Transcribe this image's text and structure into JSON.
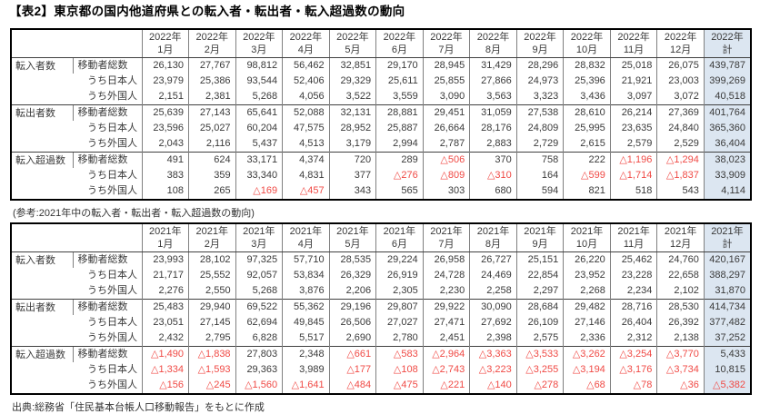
{
  "title": "【表2】東京都の国内他道府県との転入者・転出者・転入超過数の動向",
  "caption_2021": "(参考:2021年中の転入者・転出者・転入超過数の動向)",
  "source": "出典:総務省「住民基本台帳人口移動報告」をもとに作成",
  "colors": {
    "total_column_bg": "#dce6f1",
    "negative_text": "#f04a45",
    "grid_inner": "#808080",
    "grid_outer": "#000000"
  },
  "negative_prefix": "△",
  "tables": [
    {
      "year_label": "2022年",
      "columns": [
        "1月",
        "2月",
        "3月",
        "4月",
        "5月",
        "6月",
        "7月",
        "8月",
        "9月",
        "10月",
        "11月",
        "12月",
        "計"
      ],
      "groups": [
        {
          "label": "転入者数",
          "rows": [
            {
              "label": "移動者総数",
              "indent": false,
              "values": [
                "26,130",
                "27,767",
                "98,812",
                "56,462",
                "32,851",
                "29,170",
                "28,945",
                "31,429",
                "28,296",
                "28,832",
                "25,018",
                "26,075",
                "439,787"
              ]
            },
            {
              "label": "うち日本人",
              "indent": true,
              "values": [
                "23,979",
                "25,386",
                "93,544",
                "52,406",
                "29,329",
                "25,611",
                "25,855",
                "27,866",
                "24,973",
                "25,396",
                "21,921",
                "23,003",
                "399,269"
              ]
            },
            {
              "label": "うち外国人",
              "indent": true,
              "values": [
                "2,151",
                "2,381",
                "5,268",
                "4,056",
                "3,522",
                "3,559",
                "3,090",
                "3,563",
                "3,323",
                "3,436",
                "3,097",
                "3,072",
                "40,518"
              ]
            }
          ]
        },
        {
          "label": "転出者数",
          "rows": [
            {
              "label": "移動者総数",
              "indent": false,
              "values": [
                "25,639",
                "27,143",
                "65,641",
                "52,088",
                "32,131",
                "28,881",
                "29,451",
                "31,059",
                "27,538",
                "28,610",
                "26,214",
                "27,369",
                "401,764"
              ]
            },
            {
              "label": "うち日本人",
              "indent": true,
              "values": [
                "23,596",
                "25,027",
                "60,204",
                "47,575",
                "28,952",
                "25,887",
                "26,664",
                "28,176",
                "24,809",
                "25,995",
                "23,635",
                "24,840",
                "365,360"
              ]
            },
            {
              "label": "うち外国人",
              "indent": true,
              "values": [
                "2,043",
                "2,116",
                "5,437",
                "4,513",
                "3,179",
                "2,994",
                "2,787",
                "2,883",
                "2,729",
                "2,615",
                "2,579",
                "2,529",
                "36,404"
              ]
            }
          ]
        },
        {
          "label": "転入超過数",
          "rows": [
            {
              "label": "移動者総数",
              "indent": false,
              "values": [
                "491",
                "624",
                "33,171",
                "4,374",
                "720",
                "289",
                "△506",
                "370",
                "758",
                "222",
                "△1,196",
                "△1,294",
                "38,023"
              ]
            },
            {
              "label": "うち日本人",
              "indent": true,
              "values": [
                "383",
                "359",
                "33,340",
                "4,831",
                "377",
                "△276",
                "△809",
                "△310",
                "164",
                "△599",
                "△1,714",
                "△1,837",
                "33,909"
              ]
            },
            {
              "label": "うち外国人",
              "indent": true,
              "values": [
                "108",
                "265",
                "△169",
                "△457",
                "343",
                "565",
                "303",
                "680",
                "594",
                "821",
                "518",
                "543",
                "4,114"
              ]
            }
          ]
        }
      ]
    },
    {
      "year_label": "2021年",
      "columns": [
        "1月",
        "2月",
        "3月",
        "4月",
        "5月",
        "6月",
        "7月",
        "8月",
        "9月",
        "10月",
        "11月",
        "12月",
        "計"
      ],
      "groups": [
        {
          "label": "転入者数",
          "rows": [
            {
              "label": "移動者総数",
              "indent": false,
              "values": [
                "23,993",
                "28,102",
                "97,325",
                "57,710",
                "28,535",
                "29,224",
                "26,958",
                "26,727",
                "25,151",
                "26,220",
                "25,462",
                "24,760",
                "420,167"
              ]
            },
            {
              "label": "うち日本人",
              "indent": true,
              "values": [
                "21,717",
                "25,552",
                "92,057",
                "53,834",
                "26,329",
                "26,919",
                "24,728",
                "24,469",
                "22,854",
                "23,952",
                "23,228",
                "22,658",
                "388,297"
              ]
            },
            {
              "label": "うち外国人",
              "indent": true,
              "values": [
                "2,276",
                "2,550",
                "5,268",
                "3,876",
                "2,206",
                "2,305",
                "2,230",
                "2,258",
                "2,297",
                "2,268",
                "2,234",
                "2,102",
                "31,870"
              ]
            }
          ]
        },
        {
          "label": "転出者数",
          "rows": [
            {
              "label": "移動者総数",
              "indent": false,
              "values": [
                "25,483",
                "29,940",
                "69,522",
                "55,362",
                "29,196",
                "29,807",
                "29,922",
                "30,090",
                "28,684",
                "29,482",
                "28,716",
                "28,530",
                "414,734"
              ]
            },
            {
              "label": "うち日本人",
              "indent": true,
              "values": [
                "23,051",
                "27,145",
                "62,694",
                "49,845",
                "26,506",
                "27,027",
                "27,471",
                "27,692",
                "26,109",
                "27,146",
                "26,404",
                "26,392",
                "377,482"
              ]
            },
            {
              "label": "うち外国人",
              "indent": true,
              "values": [
                "2,432",
                "2,795",
                "6,828",
                "5,517",
                "2,690",
                "2,780",
                "2,451",
                "2,398",
                "2,575",
                "2,336",
                "2,312",
                "2,138",
                "37,252"
              ]
            }
          ]
        },
        {
          "label": "転入超過数",
          "rows": [
            {
              "label": "移動者総数",
              "indent": false,
              "values": [
                "△1,490",
                "△1,838",
                "27,803",
                "2,348",
                "△661",
                "△583",
                "△2,964",
                "△3,363",
                "△3,533",
                "△3,262",
                "△3,254",
                "△3,770",
                "5,433"
              ]
            },
            {
              "label": "うち日本人",
              "indent": true,
              "values": [
                "△1,334",
                "△1,593",
                "29,363",
                "3,989",
                "△177",
                "△108",
                "△2,743",
                "△3,223",
                "△3,255",
                "△3,194",
                "△3,176",
                "△3,734",
                "10,815"
              ]
            },
            {
              "label": "うち外国人",
              "indent": true,
              "values": [
                "△156",
                "△245",
                "△1,560",
                "△1,641",
                "△484",
                "△475",
                "△221",
                "△140",
                "△278",
                "△68",
                "△78",
                "△36",
                "△5,382"
              ]
            }
          ]
        }
      ]
    }
  ]
}
